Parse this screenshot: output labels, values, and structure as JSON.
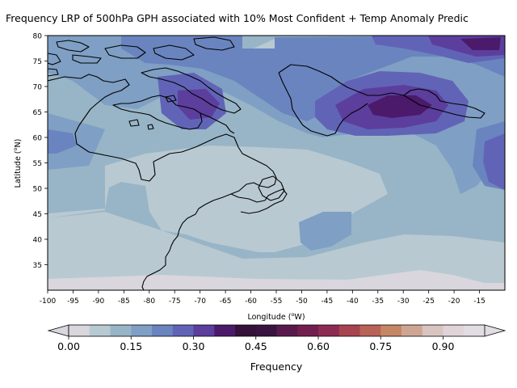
{
  "chart_data": {
    "type": "heatmap",
    "title": "Frequency LRP of 500hPa GPH associated with 10% Most Confident + Temp Anomaly Predic",
    "xlabel": "Longitude (°W)",
    "xlabel_main": "Longitude (",
    "xlabel_sup": "o",
    "xlabel_end": "W)",
    "ylabel": "Latitude (°N)",
    "ylabel_main": "Latitude (",
    "ylabel_sup": "o",
    "ylabel_end": "N)",
    "x_ticks": [
      -100,
      -95,
      -90,
      -85,
      -80,
      -75,
      -70,
      -65,
      -60,
      -55,
      -50,
      -45,
      -40,
      -35,
      -30,
      -25,
      -20,
      -15
    ],
    "y_ticks": [
      35,
      40,
      45,
      50,
      55,
      60,
      65,
      70,
      75,
      80
    ],
    "xlim": [
      -100,
      -10
    ],
    "ylim": [
      30,
      80
    ],
    "colorbar": {
      "label": "Frequency",
      "ticks": [
        "0.00",
        "0.15",
        "0.30",
        "0.45",
        "0.60",
        "0.75",
        "0.90"
      ],
      "tick_values": [
        0.0,
        0.15,
        0.3,
        0.45,
        0.6,
        0.75,
        0.9
      ],
      "range": [
        0.0,
        1.0
      ],
      "extend": "both",
      "levels": [
        0.0,
        0.05,
        0.1,
        0.15,
        0.2,
        0.25,
        0.3,
        0.35,
        0.4,
        0.45,
        0.5,
        0.55,
        0.6,
        0.65,
        0.7,
        0.75,
        0.8,
        0.85,
        0.9,
        0.95,
        1.0
      ],
      "colors": [
        "#d9d6dd",
        "#b8c9d1",
        "#98b5c7",
        "#7f9fc4",
        "#6a84bf",
        "#6164b6",
        "#5c3e9d",
        "#4b1a6a",
        "#34123a",
        "#3a1440",
        "#581a4c",
        "#721f4f",
        "#8d2b52",
        "#a9434f",
        "#b96257",
        "#c58665",
        "#cda693",
        "#d8c4c0",
        "#e0d4d9",
        "#e2dde3"
      ]
    },
    "contours": [
      {
        "lon": -100,
        "lat": 30,
        "v": 0.0
      },
      {
        "lon": -55,
        "lat": 52,
        "v": 0.08
      },
      {
        "lon": -75,
        "lat": 70,
        "v": 0.31
      },
      {
        "lon": -30,
        "lat": 67,
        "v": 0.4
      },
      {
        "lon": -20,
        "lat": 78,
        "v": 0.35
      },
      {
        "lon": -45,
        "lat": 42,
        "v": 0.2
      },
      {
        "lon": -95,
        "lat": 60,
        "v": 0.2
      }
    ]
  }
}
